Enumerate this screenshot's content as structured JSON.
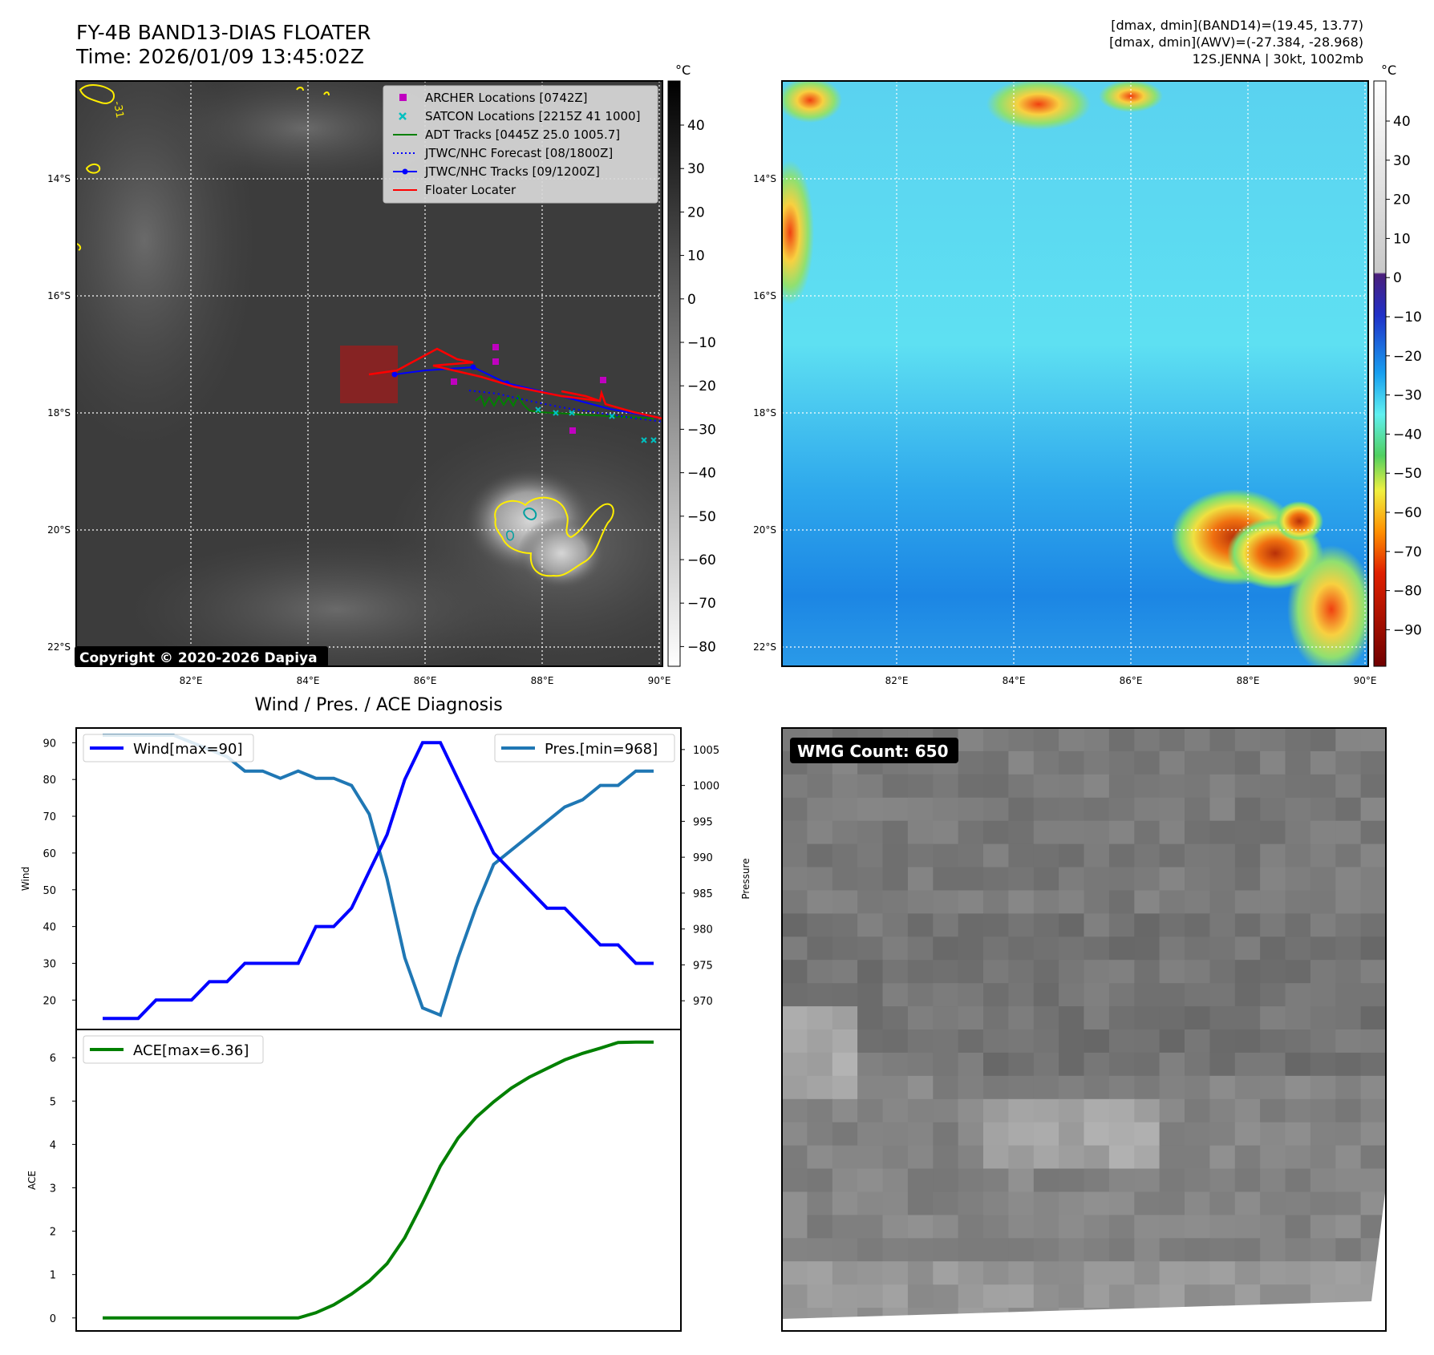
{
  "header": {
    "title": "FY-4B BAND13-DIAS FLOATER",
    "time": "Time: 2026/01/09 13:45:02Z",
    "meta_lines": [
      "[dmax, dmin](BAND14)=(19.45, 13.77)",
      "[dmax, dmin](AWV)=(-27.384, -28.968)",
      "12S.JENNA | 30kt, 1002mb"
    ]
  },
  "ir_map": {
    "lat_ticks": [
      "14°S",
      "16°S",
      "18°S",
      "20°S",
      "22°S"
    ],
    "lon_ticks": [
      "82°E",
      "84°E",
      "86°E",
      "88°E",
      "90°E"
    ],
    "colorbar_unit": "°C",
    "colorbar_ticks": [
      "40",
      "30",
      "20",
      "10",
      "0",
      "−10",
      "−20",
      "−30",
      "−40",
      "−50",
      "−60",
      "−70",
      "−80"
    ],
    "copyright": "Copyright © 2020-2026 Dapiya",
    "contour_label": "-31",
    "legend": [
      {
        "label": "ARCHER Locations [0742Z]",
        "color": "#c000c0",
        "kind": "square"
      },
      {
        "label": "SATCON Locations [2215Z 41 1000]",
        "color": "#00c0c0",
        "kind": "cross"
      },
      {
        "label": "ADT Tracks [0445Z 25.0 1005.7]",
        "color": "#008000",
        "kind": "line"
      },
      {
        "label": "JTWC/NHC Forecast [08/1800Z]",
        "color": "#0000ff",
        "kind": "dotted"
      },
      {
        "label": "JTWC/NHC Tracks [09/1200Z]",
        "color": "#0000ff",
        "kind": "dotline"
      },
      {
        "label": "Floater Locater",
        "color": "#ff0000",
        "kind": "line"
      }
    ]
  },
  "awv_map": {
    "lat_ticks": [
      "14°S",
      "16°S",
      "18°S",
      "20°S",
      "22°S"
    ],
    "lon_ticks": [
      "82°E",
      "84°E",
      "86°E",
      "88°E",
      "90°E"
    ],
    "colorbar_unit": "°C",
    "colorbar_ticks": [
      "40",
      "30",
      "20",
      "10",
      "0",
      "−10",
      "−20",
      "−30",
      "−40",
      "−50",
      "−60",
      "−70",
      "−80",
      "−90"
    ]
  },
  "diagnosis": {
    "title": "Wind / Pres. / ACE Diagnosis",
    "wind_label": "Wind",
    "pressure_label": "Pressure",
    "ace_label": "ACE",
    "wind_legend": "Wind[max=90]",
    "pres_legend": "Pres.[min=968]",
    "ace_legend": "ACE[max=6.36]",
    "wind_ticks": [
      "20",
      "30",
      "40",
      "50",
      "60",
      "70",
      "80",
      "90"
    ],
    "pres_ticks": [
      "970",
      "975",
      "980",
      "985",
      "990",
      "995",
      "1000",
      "1005"
    ],
    "ace_ticks": [
      "0",
      "1",
      "2",
      "3",
      "4",
      "5",
      "6"
    ]
  },
  "wmg": {
    "label": "WMG Count: 650"
  },
  "colors": {
    "wind": "#0000ff",
    "pressure": "#1f77b4",
    "ace": "#008000",
    "floater": "#ff0000",
    "archer": "#c000c0",
    "satcon": "#00c0c0"
  },
  "chart_data": [
    {
      "type": "line",
      "title": "Wind / Pres. / ACE Diagnosis",
      "ylabel": "Wind",
      "ylim": [
        12,
        94
      ],
      "series": [
        {
          "name": "Wind[max=90]",
          "values": [
            15,
            15,
            15,
            20,
            20,
            20,
            25,
            25,
            30,
            30,
            30,
            30,
            40,
            40,
            45,
            55,
            65,
            80,
            90,
            90,
            80,
            70,
            60,
            55,
            50,
            45,
            45,
            40,
            35,
            35,
            30,
            30
          ]
        }
      ],
      "y2label": "Pressure",
      "y2lim": [
        966,
        1008
      ],
      "series2": [
        {
          "name": "Pres.[min=968]",
          "values": [
            1007,
            1007,
            1007,
            1007,
            1007,
            1006,
            1005,
            1004,
            1002,
            1002,
            1001,
            1002,
            1001,
            1001,
            1000,
            996,
            987,
            976,
            969,
            968,
            976,
            983,
            989,
            991,
            993,
            995,
            997,
            998,
            1000,
            1000,
            1002,
            1002
          ]
        }
      ]
    },
    {
      "type": "line",
      "ylabel": "ACE",
      "ylim": [
        -0.3,
        6.65
      ],
      "series": [
        {
          "name": "ACE[max=6.36]",
          "values": [
            0,
            0,
            0,
            0,
            0,
            0,
            0,
            0,
            0,
            0,
            0,
            0,
            0.12,
            0.3,
            0.55,
            0.85,
            1.25,
            1.85,
            2.65,
            3.5,
            4.15,
            4.62,
            4.98,
            5.3,
            5.55,
            5.75,
            5.95,
            6.1,
            6.22,
            6.35,
            6.36,
            6.36
          ]
        }
      ]
    }
  ]
}
